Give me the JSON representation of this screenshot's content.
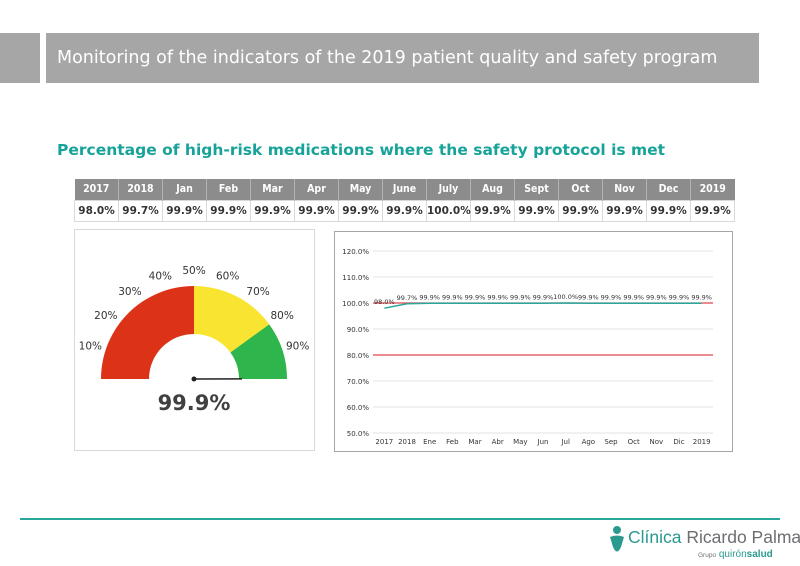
{
  "header": {
    "title": "Monitoring of the indicators of the 2019 patient quality and safety program"
  },
  "section": {
    "subtitle": "Percentage of high-risk medications where the safety protocol is met"
  },
  "table": {
    "headers": [
      "2017",
      "2018",
      "Jan",
      "Feb",
      "Mar",
      "Apr",
      "May",
      "June",
      "July",
      "Aug",
      "Sept",
      "Oct",
      "Nov",
      "Dec",
      "2019"
    ],
    "values": [
      "98.0%",
      "99.7%",
      "99.9%",
      "99.9%",
      "99.9%",
      "99.9%",
      "99.9%",
      "99.9%",
      "100.0%",
      "99.9%",
      "99.9%",
      "99.9%",
      "99.9%",
      "99.9%",
      "99.9%"
    ]
  },
  "colors": {
    "header_bg": "#a6a6a6",
    "accent": "#17a399",
    "gauge_red": "#dc3318",
    "gauge_yellow": "#f9e531",
    "gauge_green": "#2eb54c",
    "target_line": "#e0474c",
    "actual_line": "#2aa79b"
  },
  "chart_data": [
    {
      "type": "gauge",
      "value": 99.9,
      "value_label": "99.9%",
      "range": [
        0,
        100
      ],
      "tick_labels": [
        "10%",
        "20%",
        "30%",
        "40%",
        "50%",
        "60%",
        "70%",
        "80%",
        "90%"
      ],
      "bands": [
        {
          "from": 0,
          "to": 50,
          "color": "#dc3318"
        },
        {
          "from": 50,
          "to": 80,
          "color": "#f9e531"
        },
        {
          "from": 80,
          "to": 100,
          "color": "#2eb54c"
        }
      ]
    },
    {
      "type": "line",
      "categories": [
        "2017",
        "2018",
        "Ene",
        "Feb",
        "Mar",
        "Abr",
        "May",
        "Jun",
        "Jul",
        "Ago",
        "Sep",
        "Oct",
        "Nov",
        "Dic",
        "2019"
      ],
      "ylim": [
        50,
        120
      ],
      "y_ticks": [
        "50.0%",
        "60.0%",
        "70.0%",
        "80.0%",
        "90.0%",
        "100.0%",
        "110.0%",
        "120.0%"
      ],
      "grid": true,
      "series": [
        {
          "values": [
            98.0,
            99.7,
            99.9,
            99.9,
            99.9,
            99.9,
            99.9,
            99.9,
            100.0,
            99.9,
            99.9,
            99.9,
            99.9,
            99.9,
            99.9
          ],
          "labels": [
            "98.0%",
            "99.7%",
            "99.9%",
            "99.9%",
            "99.9%",
            "99.9%",
            "99.9%",
            "99.9%",
            "100.0%",
            "99.9%",
            "99.9%",
            "99.9%",
            "99.9%",
            "99.9%",
            "99.9%"
          ],
          "color": "#2aa79b"
        },
        {
          "values": [
            100,
            100,
            100,
            100,
            100,
            100,
            100,
            100,
            100,
            100,
            100,
            100,
            100,
            100,
            100
          ],
          "color": "#e0474c"
        },
        {
          "values": [
            80,
            80,
            80,
            80,
            80,
            80,
            80,
            80,
            80,
            80,
            80,
            80,
            80,
            80,
            80
          ],
          "color": "#e0474c"
        }
      ]
    }
  ],
  "logo": {
    "name_part1": "Clínica",
    "name_part2": "Ricardo Palma",
    "group_prefix": "Grupo",
    "group_part1": "quirón",
    "group_part2": "salud"
  }
}
